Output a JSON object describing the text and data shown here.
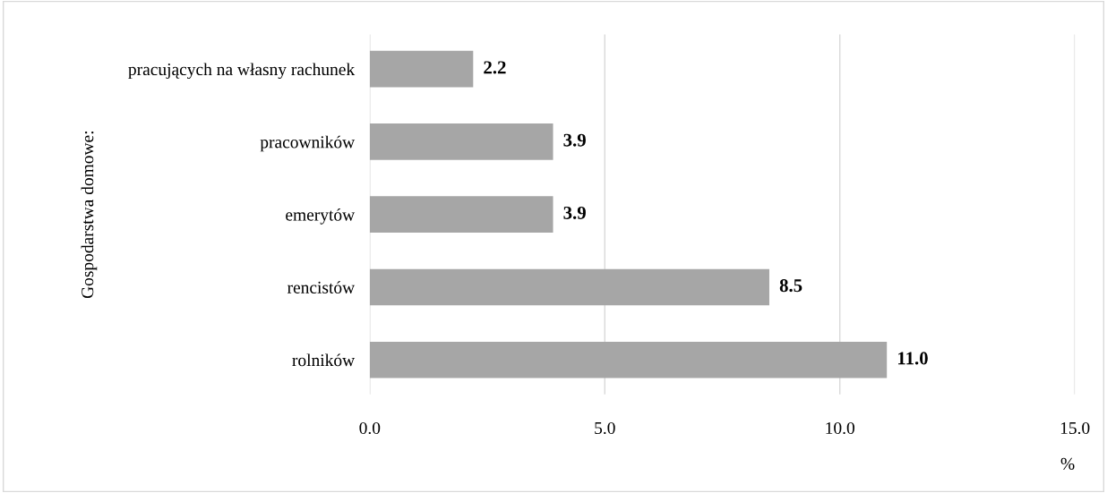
{
  "chart_data": {
    "type": "bar",
    "orientation": "horizontal",
    "ylabel": "Gospodarstwa domowe:",
    "xlabel": "%",
    "categories": [
      "pracujących na własny rachunek",
      "pracowników",
      "emerytów",
      "rencistów",
      "rolników"
    ],
    "values": [
      2.2,
      3.9,
      3.9,
      8.5,
      11.0
    ],
    "value_labels": [
      "2.2",
      "3.9",
      "3.9",
      "8.5",
      "11.0"
    ],
    "color": "#a6a6a6",
    "xlim": [
      0,
      15
    ],
    "xticks": [
      {
        "value": 0,
        "label": "0.0"
      },
      {
        "value": 5,
        "label": "5.0"
      },
      {
        "value": 10,
        "label": "10.0"
      },
      {
        "value": 15,
        "label": "15.0"
      }
    ],
    "grid": "x",
    "legend": false
  }
}
